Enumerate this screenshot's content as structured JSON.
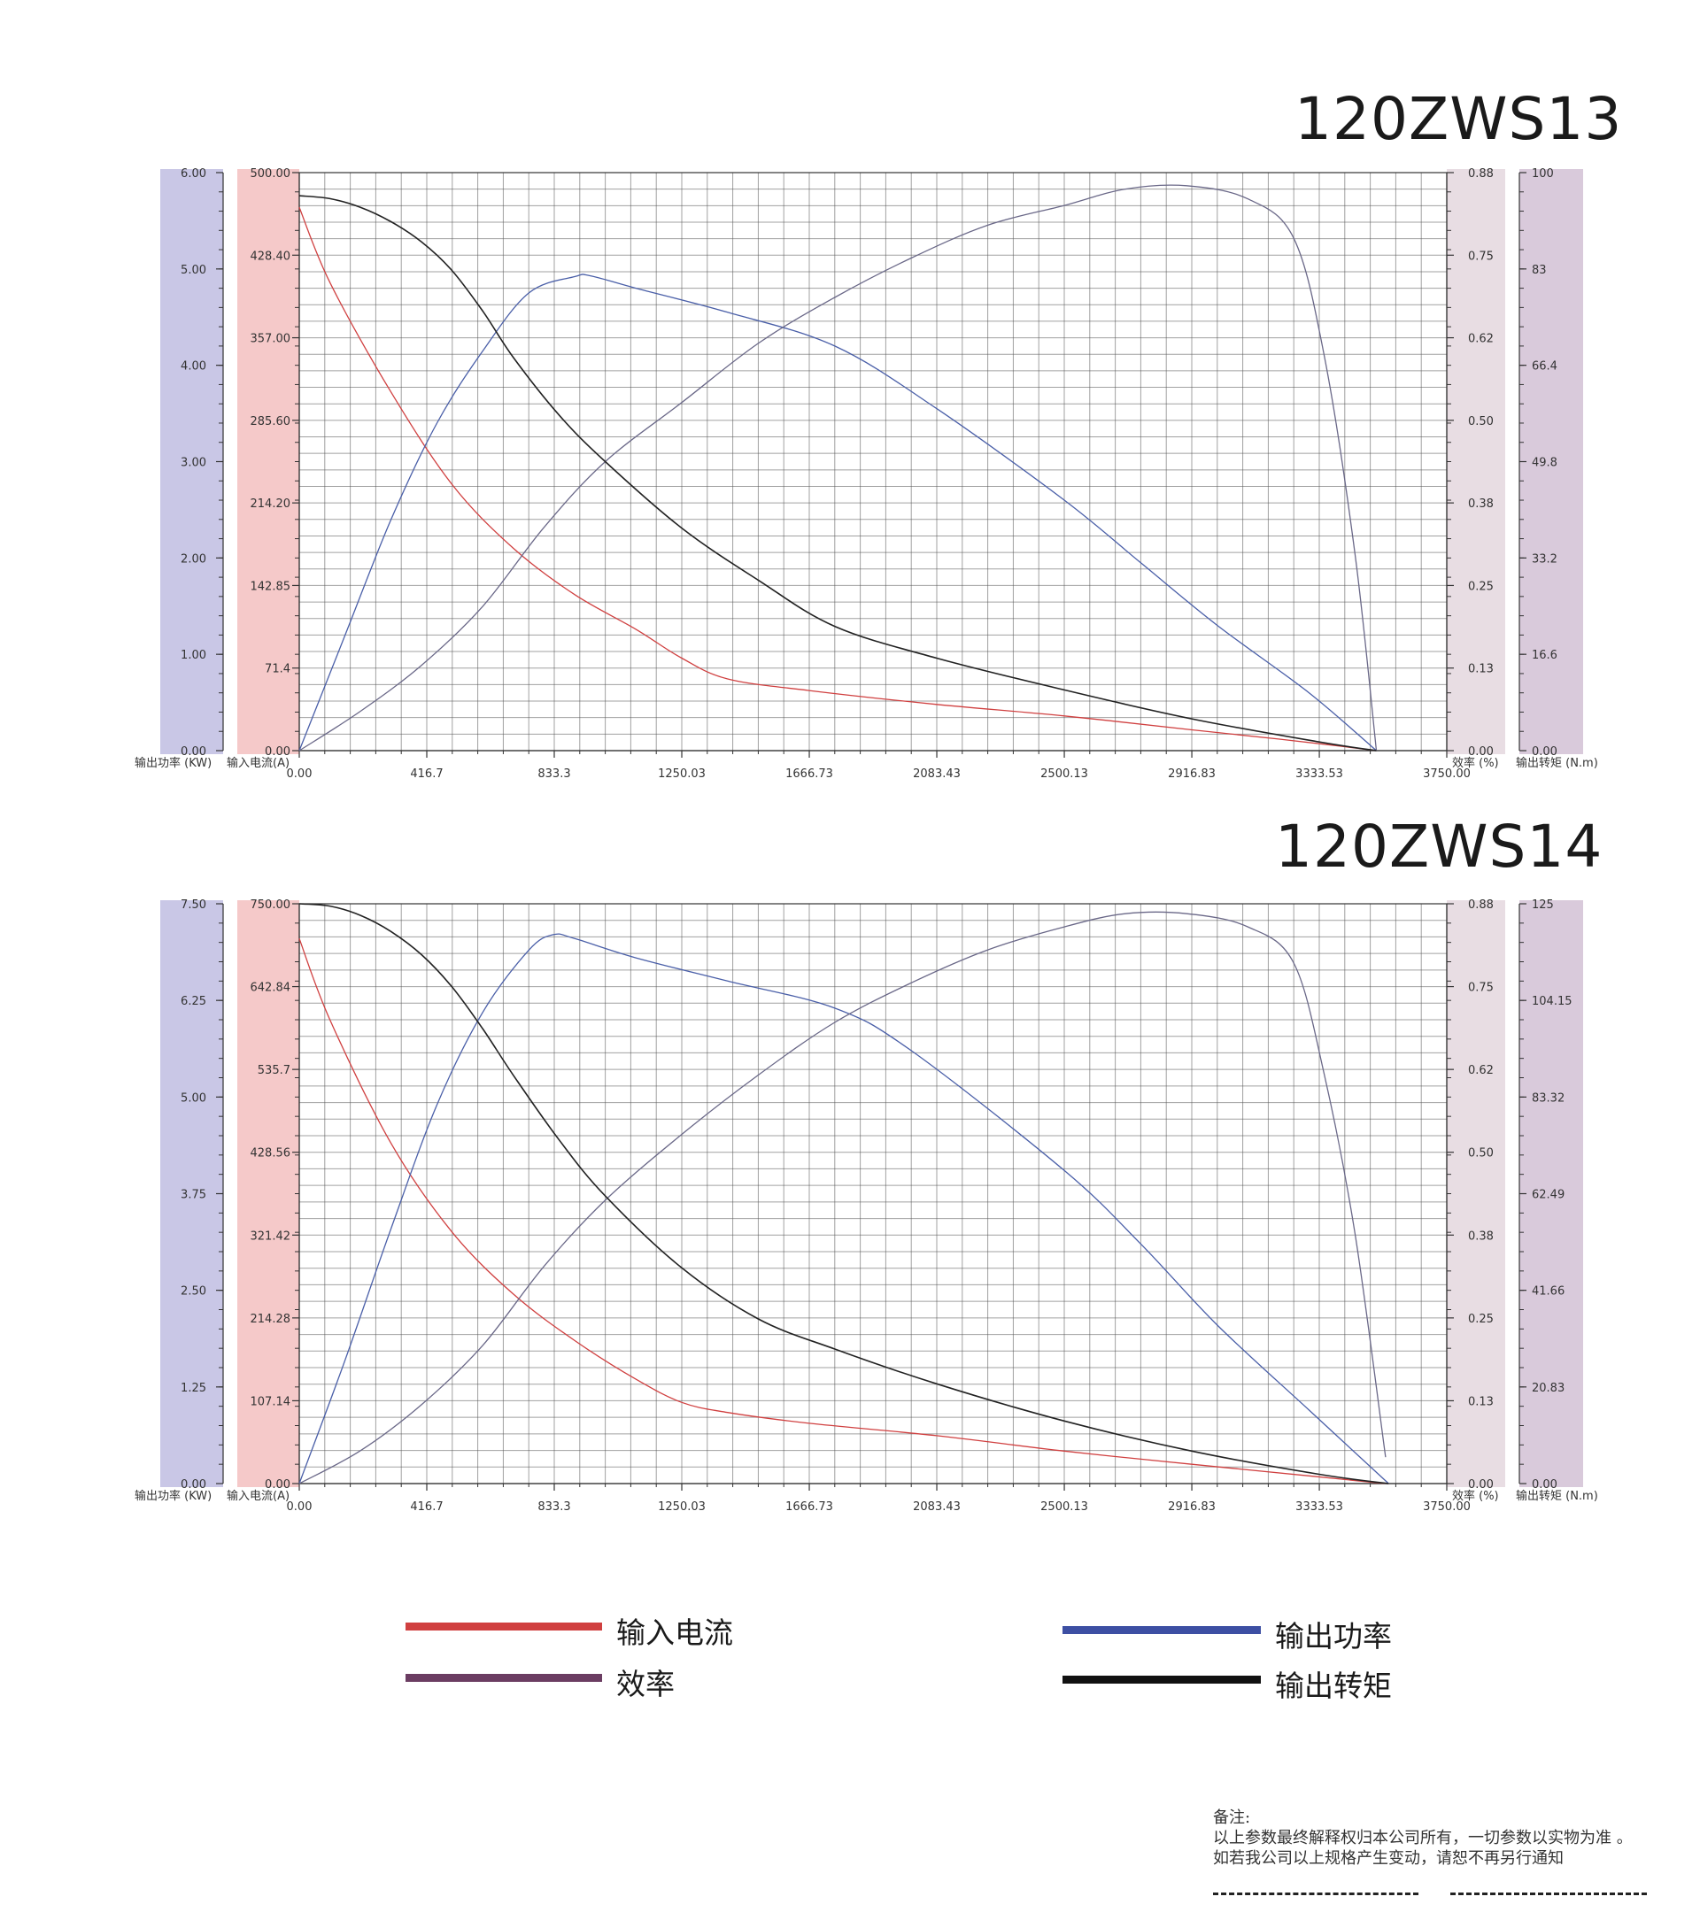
{
  "chart_data": [
    {
      "type": "line",
      "title": "120ZWS13",
      "x_ticks": [
        "0.00",
        "416.7",
        "833.3",
        "1250.03",
        "1666.73",
        "2083.43",
        "2500.13",
        "2916.83",
        "3333.53",
        "3750.00"
      ],
      "xlim": [
        0,
        3750
      ],
      "axes": {
        "power": {
          "label": "输出功率 (KW)",
          "ticks": [
            "0.00",
            "1.00",
            "2.00",
            "3.00",
            "4.00",
            "5.00",
            "6.00"
          ],
          "range": [
            0,
            6
          ],
          "color": "#c9c7e6"
        },
        "current": {
          "label": "输入电流(A)",
          "ticks": [
            "0.00",
            "71.4",
            "142.85",
            "214.20",
            "285.60",
            "357.00",
            "428.40",
            "500.00"
          ],
          "range": [
            0,
            500
          ],
          "color": "#f5c9c9"
        },
        "efficiency": {
          "label": "效率 (%)",
          "ticks": [
            "0.00",
            "0.13",
            "0.25",
            "0.38",
            "0.50",
            "0.62",
            "0.75",
            "0.88"
          ],
          "range": [
            0,
            0.88
          ],
          "color": "#e8dde3"
        },
        "torque": {
          "label": "输出转矩 (N.m)",
          "ticks": [
            "0.00",
            "16.6",
            "33.2",
            "49.8",
            "66.4",
            "83",
            "100"
          ],
          "range": [
            0,
            100
          ],
          "color": "#d9cadb"
        }
      },
      "series": [
        {
          "name": "输入电流",
          "axis": "current",
          "color": "#d04040",
          "x": [
            0,
            100,
            300,
            500,
            700,
            900,
            1100,
            1250,
            1400,
            1666,
            2083,
            2500,
            2917,
            3200,
            3400,
            3520
          ],
          "y": [
            470,
            405,
            310,
            230,
            175,
            135,
            105,
            80,
            62,
            52,
            40,
            30,
            18,
            10,
            4,
            0
          ]
        },
        {
          "name": "输出功率",
          "axis": "power",
          "color": "#4a5fa8",
          "x": [
            0,
            150,
            300,
            450,
            600,
            750,
            900,
            950,
            1100,
            1400,
            1750,
            2083,
            2500,
            2750,
            3000,
            3300,
            3520
          ],
          "y": [
            0,
            1.2,
            2.4,
            3.4,
            4.15,
            4.75,
            4.92,
            4.93,
            4.8,
            4.55,
            4.2,
            3.55,
            2.6,
            1.95,
            1.3,
            0.6,
            0
          ]
        },
        {
          "name": "效率",
          "axis": "efficiency",
          "color": "#6a6888",
          "x": [
            0,
            200,
            400,
            600,
            800,
            1000,
            1250,
            1500,
            1750,
            2000,
            2250,
            2500,
            2700,
            2900,
            3100,
            3250,
            3350,
            3450,
            3520
          ],
          "y": [
            0,
            0.06,
            0.13,
            0.22,
            0.34,
            0.44,
            0.53,
            0.62,
            0.69,
            0.75,
            0.8,
            0.83,
            0.855,
            0.86,
            0.84,
            0.78,
            0.6,
            0.3,
            0
          ]
        },
        {
          "name": "输出转矩",
          "axis": "torque",
          "color": "#222222",
          "x": [
            0,
            100,
            200,
            300,
            400,
            500,
            600,
            700,
            850,
            1000,
            1250,
            1500,
            1750,
            2083,
            2500,
            2917,
            3333,
            3520
          ],
          "y": [
            96,
            95.5,
            94,
            91.5,
            88,
            83,
            76,
            68,
            58,
            50,
            38.5,
            29.5,
            21.5,
            16,
            10.5,
            5.5,
            1.5,
            0
          ]
        }
      ]
    },
    {
      "type": "line",
      "title": "120ZWS14",
      "x_ticks": [
        "0.00",
        "416.7",
        "833.3",
        "1250.03",
        "1666.73",
        "2083.43",
        "2500.13",
        "2916.83",
        "3333.53",
        "3750.00"
      ],
      "xlim": [
        0,
        3750
      ],
      "axes": {
        "power": {
          "label": "输出功率 (KW)",
          "ticks": [
            "0.00",
            "1.25",
            "2.50",
            "3.75",
            "5.00",
            "6.25",
            "7.50"
          ],
          "range": [
            0,
            7.5
          ],
          "color": "#c9c7e6"
        },
        "current": {
          "label": "输入电流(A)",
          "ticks": [
            "0.00",
            "107.14",
            "214.28",
            "321.42",
            "428.56",
            "535.7",
            "642.84",
            "750.00"
          ],
          "range": [
            0,
            750
          ],
          "color": "#f5c9c9"
        },
        "efficiency": {
          "label": "效率 (%)",
          "ticks": [
            "0.00",
            "0.13",
            "0.25",
            "0.38",
            "0.50",
            "0.62",
            "0.75",
            "0.88"
          ],
          "range": [
            0,
            0.88
          ],
          "color": "#e8dde3"
        },
        "torque": {
          "label": "输出转矩 (N.m)",
          "ticks": [
            "0.00",
            "20.83",
            "41.66",
            "62.49",
            "83.32",
            "104.15",
            "125"
          ],
          "range": [
            0,
            125
          ],
          "color": "#d9cadb"
        }
      },
      "series": [
        {
          "name": "输入电流",
          "axis": "current",
          "color": "#d04040",
          "x": [
            0,
            100,
            300,
            500,
            700,
            900,
            1100,
            1250,
            1400,
            1666,
            2083,
            2500,
            2917,
            3300,
            3500,
            3560
          ],
          "y": [
            705,
            600,
            440,
            325,
            245,
            185,
            135,
            105,
            92,
            78,
            62,
            42,
            25,
            10,
            2,
            0
          ]
        },
        {
          "name": "输出功率",
          "axis": "power",
          "color": "#4a5fa8",
          "x": [
            0,
            150,
            300,
            450,
            600,
            750,
            830,
            900,
            1100,
            1400,
            1750,
            2000,
            2500,
            2750,
            3000,
            3300,
            3560
          ],
          "y": [
            0,
            1.6,
            3.3,
            4.9,
            6.1,
            6.9,
            7.1,
            7.05,
            6.8,
            6.5,
            6.15,
            5.6,
            4.05,
            3.1,
            2.05,
            0.95,
            0
          ]
        },
        {
          "name": "效率",
          "axis": "efficiency",
          "color": "#6a6888",
          "x": [
            0,
            200,
            400,
            600,
            800,
            1000,
            1250,
            1500,
            1750,
            2000,
            2250,
            2500,
            2700,
            2900,
            3100,
            3250,
            3350,
            3450,
            3550
          ],
          "y": [
            0,
            0.05,
            0.12,
            0.21,
            0.33,
            0.43,
            0.53,
            0.62,
            0.7,
            0.76,
            0.81,
            0.845,
            0.865,
            0.865,
            0.845,
            0.79,
            0.62,
            0.38,
            0.04
          ]
        },
        {
          "name": "输出转矩",
          "axis": "torque",
          "color": "#222222",
          "x": [
            0,
            100,
            200,
            300,
            400,
            500,
            600,
            700,
            850,
            1000,
            1250,
            1500,
            1750,
            2083,
            2500,
            2917,
            3333,
            3560
          ],
          "y": [
            125,
            124.5,
            122.5,
            119,
            114,
            107,
            98,
            88,
            74,
            62,
            46.5,
            35.5,
            29,
            21.5,
            13.5,
            7,
            2,
            0
          ]
        }
      ]
    }
  ],
  "legend": [
    {
      "label": "输入电流",
      "color": "#d04040"
    },
    {
      "label": "效率",
      "color": "#6b3d62"
    },
    {
      "label": "输出功率",
      "color": "#3d4fa3"
    },
    {
      "label": "输出转矩",
      "color": "#111111"
    }
  ],
  "notes": {
    "heading": "备注:",
    "line1": "以上参数最终解释权归本公司所有，一切参数以实物为准 。",
    "line2": "如若我公司以上规格产生变动，请恕不再另行通知"
  }
}
